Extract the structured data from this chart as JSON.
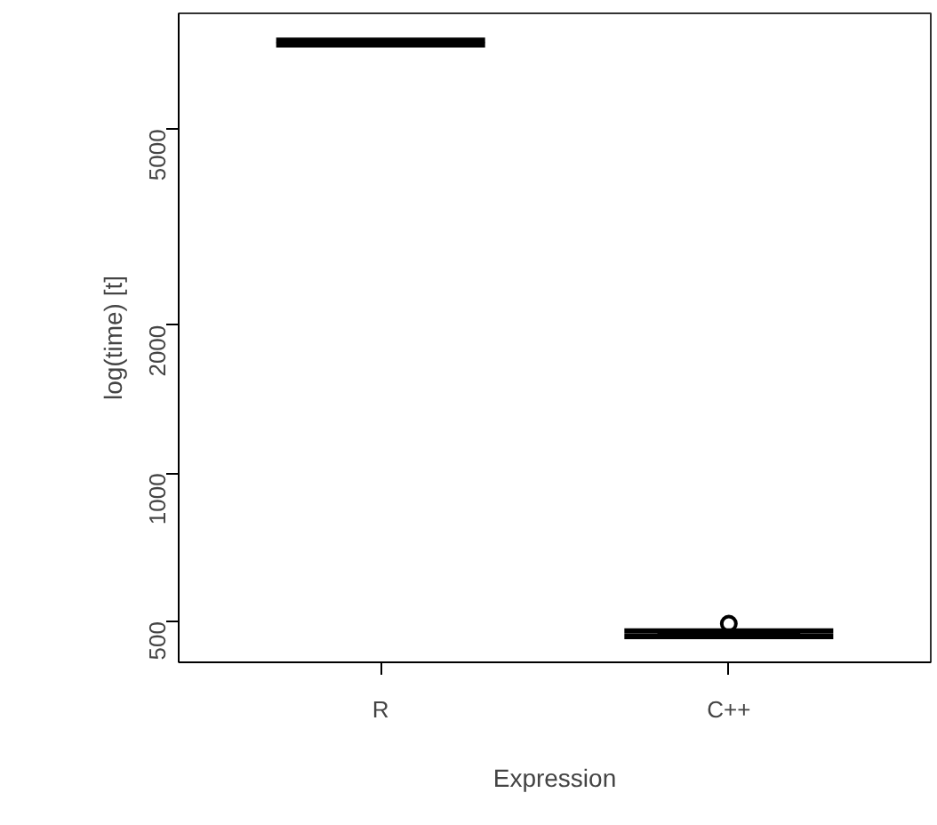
{
  "chart_data": {
    "type": "box",
    "xlabel": "Expression",
    "ylabel": "log(time) [t]",
    "categories": [
      "R",
      "C++"
    ],
    "boxes": [
      {
        "low": 7420,
        "q1": 7460,
        "median": 7500,
        "q3": 7540,
        "high": 7580
      },
      {
        "low": 466,
        "q1": 469,
        "median": 472,
        "q3": 475,
        "high": 478,
        "outliers": [
          495
        ]
      }
    ],
    "log": true,
    "ylim": [
      413,
      8600
    ],
    "yticks": [
      500,
      1000,
      2000,
      5000
    ],
    "grid": false,
    "color": "#000000"
  }
}
